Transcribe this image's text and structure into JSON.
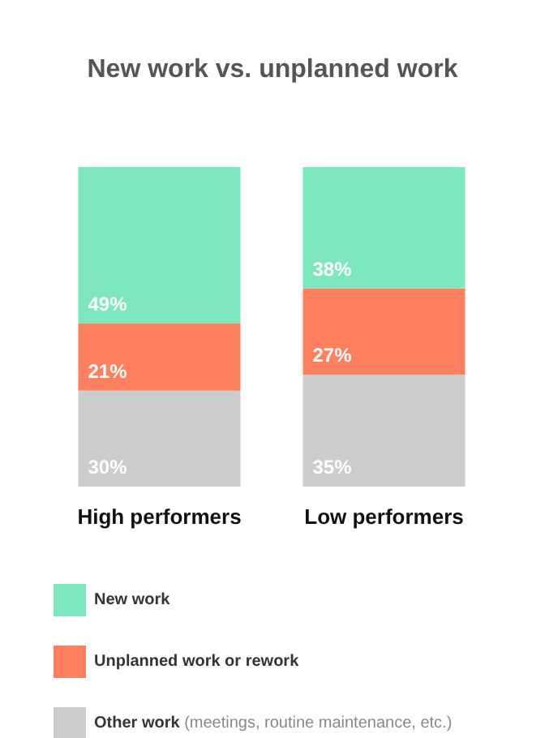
{
  "chart_data": {
    "type": "bar",
    "title": "New work vs. unplanned work",
    "categories": [
      "High performers",
      "Low performers"
    ],
    "stacked": true,
    "legend": "bottom left",
    "series": [
      {
        "name": "Other work (meetings, routine maintenance, etc.)",
        "color": "#cccccc",
        "values": [
          30,
          35
        ],
        "value_labels": [
          "30%",
          "35%"
        ]
      },
      {
        "name": "Unplanned work or rework",
        "color": "#ff7f5e",
        "values": [
          21,
          27
        ],
        "value_labels": [
          "21%",
          "27%"
        ]
      },
      {
        "name": "New work",
        "color": "#7de8bf",
        "values": [
          49,
          38
        ],
        "value_labels": [
          "49%",
          "38%"
        ]
      }
    ]
  }
}
